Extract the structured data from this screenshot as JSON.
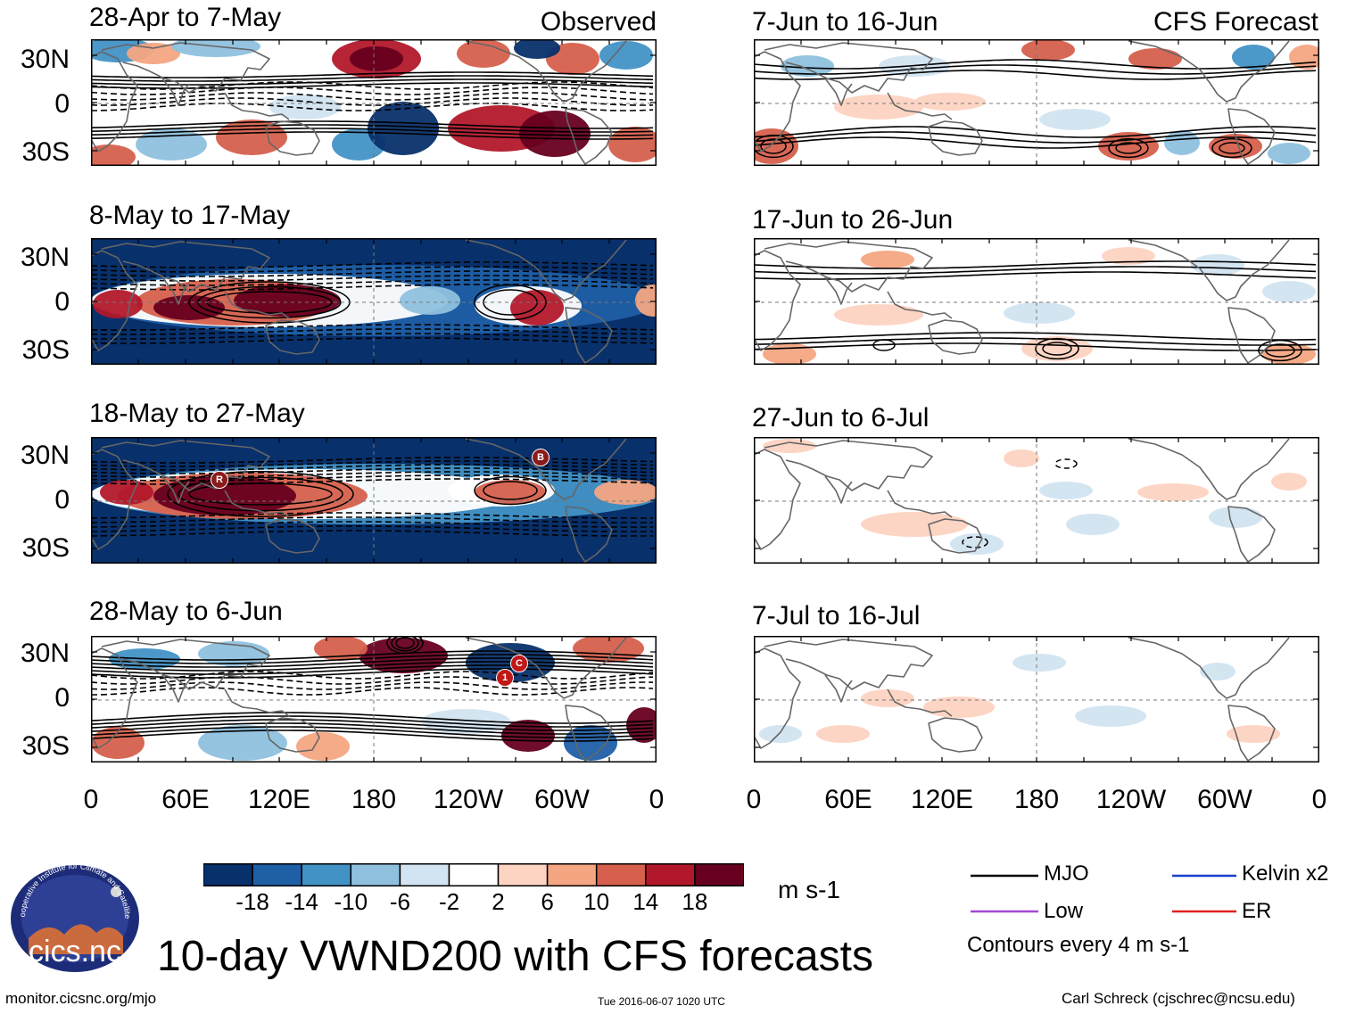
{
  "left_header": {
    "tag": "Observed"
  },
  "right_header": {
    "tag": "CFS Forecast"
  },
  "observed_panels": [
    {
      "title": "28-Apr to 7-May"
    },
    {
      "title": "8-May to 17-May"
    },
    {
      "title": "18-May to 27-May"
    },
    {
      "title": "28-May to 6-Jun"
    }
  ],
  "forecast_panels": [
    {
      "title": "7-Jun to 16-Jun"
    },
    {
      "title": "17-Jun to 26-Jun"
    },
    {
      "title": "27-Jun to 6-Jul"
    },
    {
      "title": "7-Jul to 16-Jul"
    }
  ],
  "lat_labels": [
    "30N",
    "0",
    "30S"
  ],
  "lon_labels": [
    "0",
    "60E",
    "120E",
    "180",
    "120W",
    "60W",
    "0"
  ],
  "markers": {
    "r": "R",
    "b": "B",
    "one": "1",
    "c": "C"
  },
  "colorbar": {
    "labels": [
      "-18",
      "-14",
      "-10",
      "-6",
      "-2",
      "2",
      "6",
      "10",
      "14",
      "18"
    ],
    "colors": [
      "#08306b",
      "#1f5fa6",
      "#4292c6",
      "#8fc1de",
      "#d2e4f1",
      "#ffffff",
      "#fdd3c1",
      "#f4a582",
      "#d6604d",
      "#b2182b",
      "#67001f"
    ],
    "units": "m s-1"
  },
  "legend": {
    "items": [
      {
        "label": "MJO",
        "color": "#000000"
      },
      {
        "label": "Kelvin x2",
        "color": "#1a3fcc"
      },
      {
        "label": "Low",
        "color": "#a24ad6"
      },
      {
        "label": "ER",
        "color": "#e02020"
      }
    ],
    "note": "Contours every 4 m s-1"
  },
  "logo": {
    "text": "cics.nc",
    "ring_text": "Cooperative Institute for Climate and Satellites"
  },
  "main_title": "10-day VWND200 with CFS forecasts",
  "footer": {
    "url": "monitor.cicsnc.org/mjo",
    "timestamp": "Tue 2016-06-07 1020 UTC",
    "author": "Carl Schreck (cjschrec@ncsu.edu)"
  }
}
